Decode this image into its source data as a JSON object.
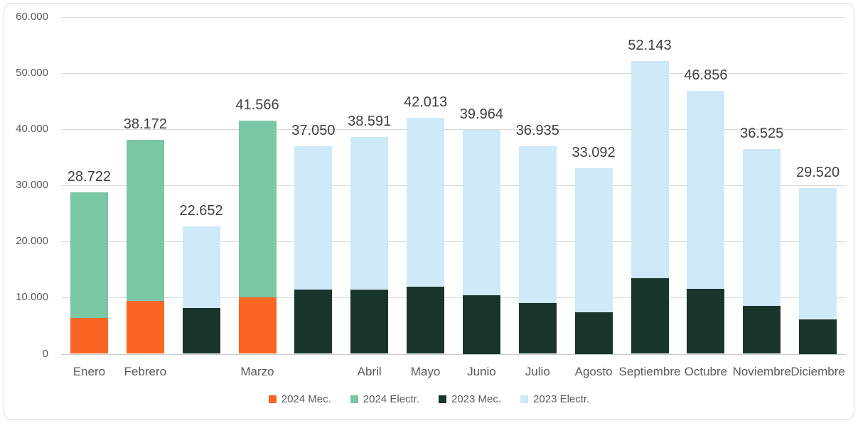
{
  "chart_data": {
    "type": "bar",
    "stacked": true,
    "title": "",
    "number_format": "spanish-thousands-dot",
    "y_axis": {
      "min": 0,
      "max": 60000,
      "step": 10000,
      "tick_labels": [
        "0",
        "10.000",
        "20.000",
        "30.000",
        "40.000",
        "50.000",
        "60.000"
      ],
      "grid": true
    },
    "series_colors": {
      "2024_mec": "#f96522",
      "2024_electr": "#7ac7a6",
      "2023_mec": "#17352b",
      "2023_electr": "#cee9f8"
    },
    "legend": [
      {
        "label": "2024 Mec.",
        "color": "#f96522"
      },
      {
        "label": "2024 Electr.",
        "color": "#7ac7a6"
      },
      {
        "label": "2023 Mec.",
        "color": "#17352b"
      },
      {
        "label": "2023 Electr.",
        "color": "#cee9f8"
      }
    ],
    "legend_position": "bottom",
    "slots": [
      {
        "month": "Enero",
        "year": "2024",
        "mec": 6400,
        "electr": 22322,
        "total": 28722,
        "label": "28.722"
      },
      {
        "month": "Febrero",
        "year": "2024",
        "mec": 9400,
        "electr": 28772,
        "total": 38172,
        "label": "38.172"
      },
      {
        "month": "",
        "year": "2023",
        "mec": 8100,
        "electr": 14552,
        "total": 22652,
        "label": "22.652"
      },
      {
        "month": "Marzo",
        "year": "2024",
        "mec": 10000,
        "electr": 31566,
        "total": 41566,
        "label": "41.566"
      },
      {
        "month": "",
        "year": "2023",
        "mec": 11400,
        "electr": 25650,
        "total": 37050,
        "label": "37.050"
      },
      {
        "month": "Abril",
        "year": "2023",
        "mec": 11500,
        "electr": 27091,
        "total": 38591,
        "label": "38.591"
      },
      {
        "month": "Mayo",
        "year": "2023",
        "mec": 12000,
        "electr": 30013,
        "total": 42013,
        "label": "42.013"
      },
      {
        "month": "Junio",
        "year": "2023",
        "mec": 10500,
        "electr": 29464,
        "total": 39964,
        "label": "39.964"
      },
      {
        "month": "Julio",
        "year": "2023",
        "mec": 9000,
        "electr": 27935,
        "total": 36935,
        "label": "36.935"
      },
      {
        "month": "Agosto",
        "year": "2023",
        "mec": 7400,
        "electr": 25692,
        "total": 33092,
        "label": "33.092"
      },
      {
        "month": "Septiembre",
        "year": "2023",
        "mec": 13500,
        "electr": 38643,
        "total": 52143,
        "label": "52.143"
      },
      {
        "month": "Octubre",
        "year": "2023",
        "mec": 11600,
        "electr": 35256,
        "total": 46856,
        "label": "46.856"
      },
      {
        "month": "Noviembre",
        "year": "2023",
        "mec": 8500,
        "electr": 28025,
        "total": 36525,
        "label": "36.525"
      },
      {
        "month": "Diciembre",
        "year": "2023",
        "mec": 6200,
        "electr": 23320,
        "total": 29520,
        "label": "29.520"
      }
    ]
  }
}
